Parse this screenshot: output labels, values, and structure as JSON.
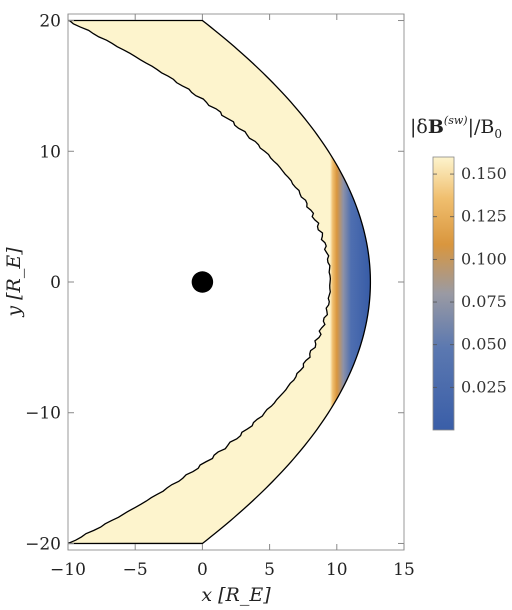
{
  "chart_data": {
    "type": "heatmap",
    "title": "",
    "xlabel": "x [R_E]",
    "ylabel": "y [R_E]",
    "xlim": [
      -10,
      15
    ],
    "ylim": [
      -20.5,
      20.5
    ],
    "x_ticks": [
      -10,
      -5,
      0,
      5,
      10,
      15
    ],
    "x_tick_labels": [
      "−10",
      "−5",
      "0",
      "5",
      "10",
      "15"
    ],
    "y_ticks": [
      -20,
      -10,
      0,
      10,
      20
    ],
    "y_tick_labels": [
      "−20",
      "−10",
      "0",
      "10",
      "20"
    ],
    "region": {
      "inner_boundary": {
        "nose_x": 9.5,
        "curvature_y_at_x_minus10": 20
      },
      "outer_boundary": {
        "nose_x": 12.5,
        "curvature_y_at_x_0": 20
      },
      "clip_x_min": -10,
      "clip_y_abs": 20
    },
    "planet": {
      "x": 0,
      "y": 0,
      "radius": 0.8,
      "color": "#000000"
    },
    "colorbar": {
      "title": "|δB^(sw)|/B_0",
      "title_main": "|δ",
      "title_bold": "B",
      "title_sup": "(sw)",
      "title_tail": "|/B",
      "title_sub": "0",
      "min": 0.0,
      "max": 0.16,
      "ticks": [
        0.025,
        0.05,
        0.075,
        0.1,
        0.125,
        0.15
      ],
      "tick_labels": [
        "0.025",
        "0.050",
        "0.075",
        "0.100",
        "0.125",
        "0.150"
      ],
      "colors": [
        "#3a5ea8",
        "#5b78b0",
        "#9a9aa3",
        "#d9963e",
        "#f0bf6f",
        "#fdf4cd"
      ]
    }
  }
}
